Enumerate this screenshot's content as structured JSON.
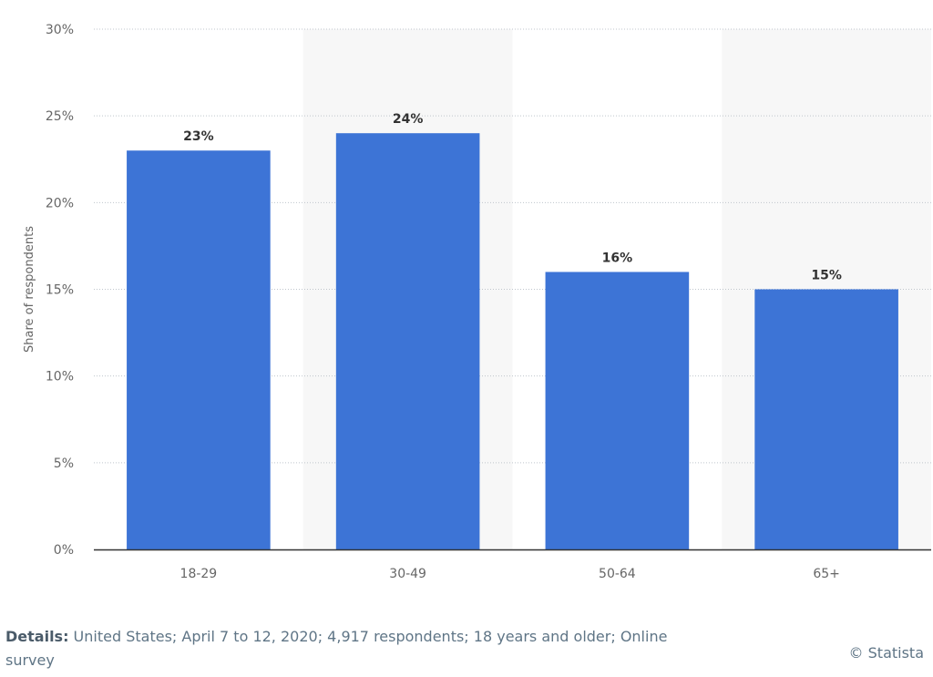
{
  "chart_data": {
    "type": "bar",
    "categories": [
      "18-29",
      "30-49",
      "50-64",
      "65+"
    ],
    "values": [
      23,
      24,
      16,
      15
    ],
    "value_labels": [
      "23%",
      "24%",
      "16%",
      "15%"
    ],
    "ylabel": "Share of respondents",
    "ylim": [
      0,
      30
    ],
    "yticks": [
      0,
      5,
      10,
      15,
      20,
      25,
      30
    ],
    "ytick_labels": [
      "0%",
      "5%",
      "10%",
      "15%",
      "20%",
      "25%",
      "30%"
    ],
    "grid": true,
    "bar_color": "#3d74d6"
  },
  "details": {
    "label": "Details:",
    "text": " United States; April 7 to 12, 2020; 4,917 respondents; 18 years and older; Online survey"
  },
  "credit": "© Statista"
}
